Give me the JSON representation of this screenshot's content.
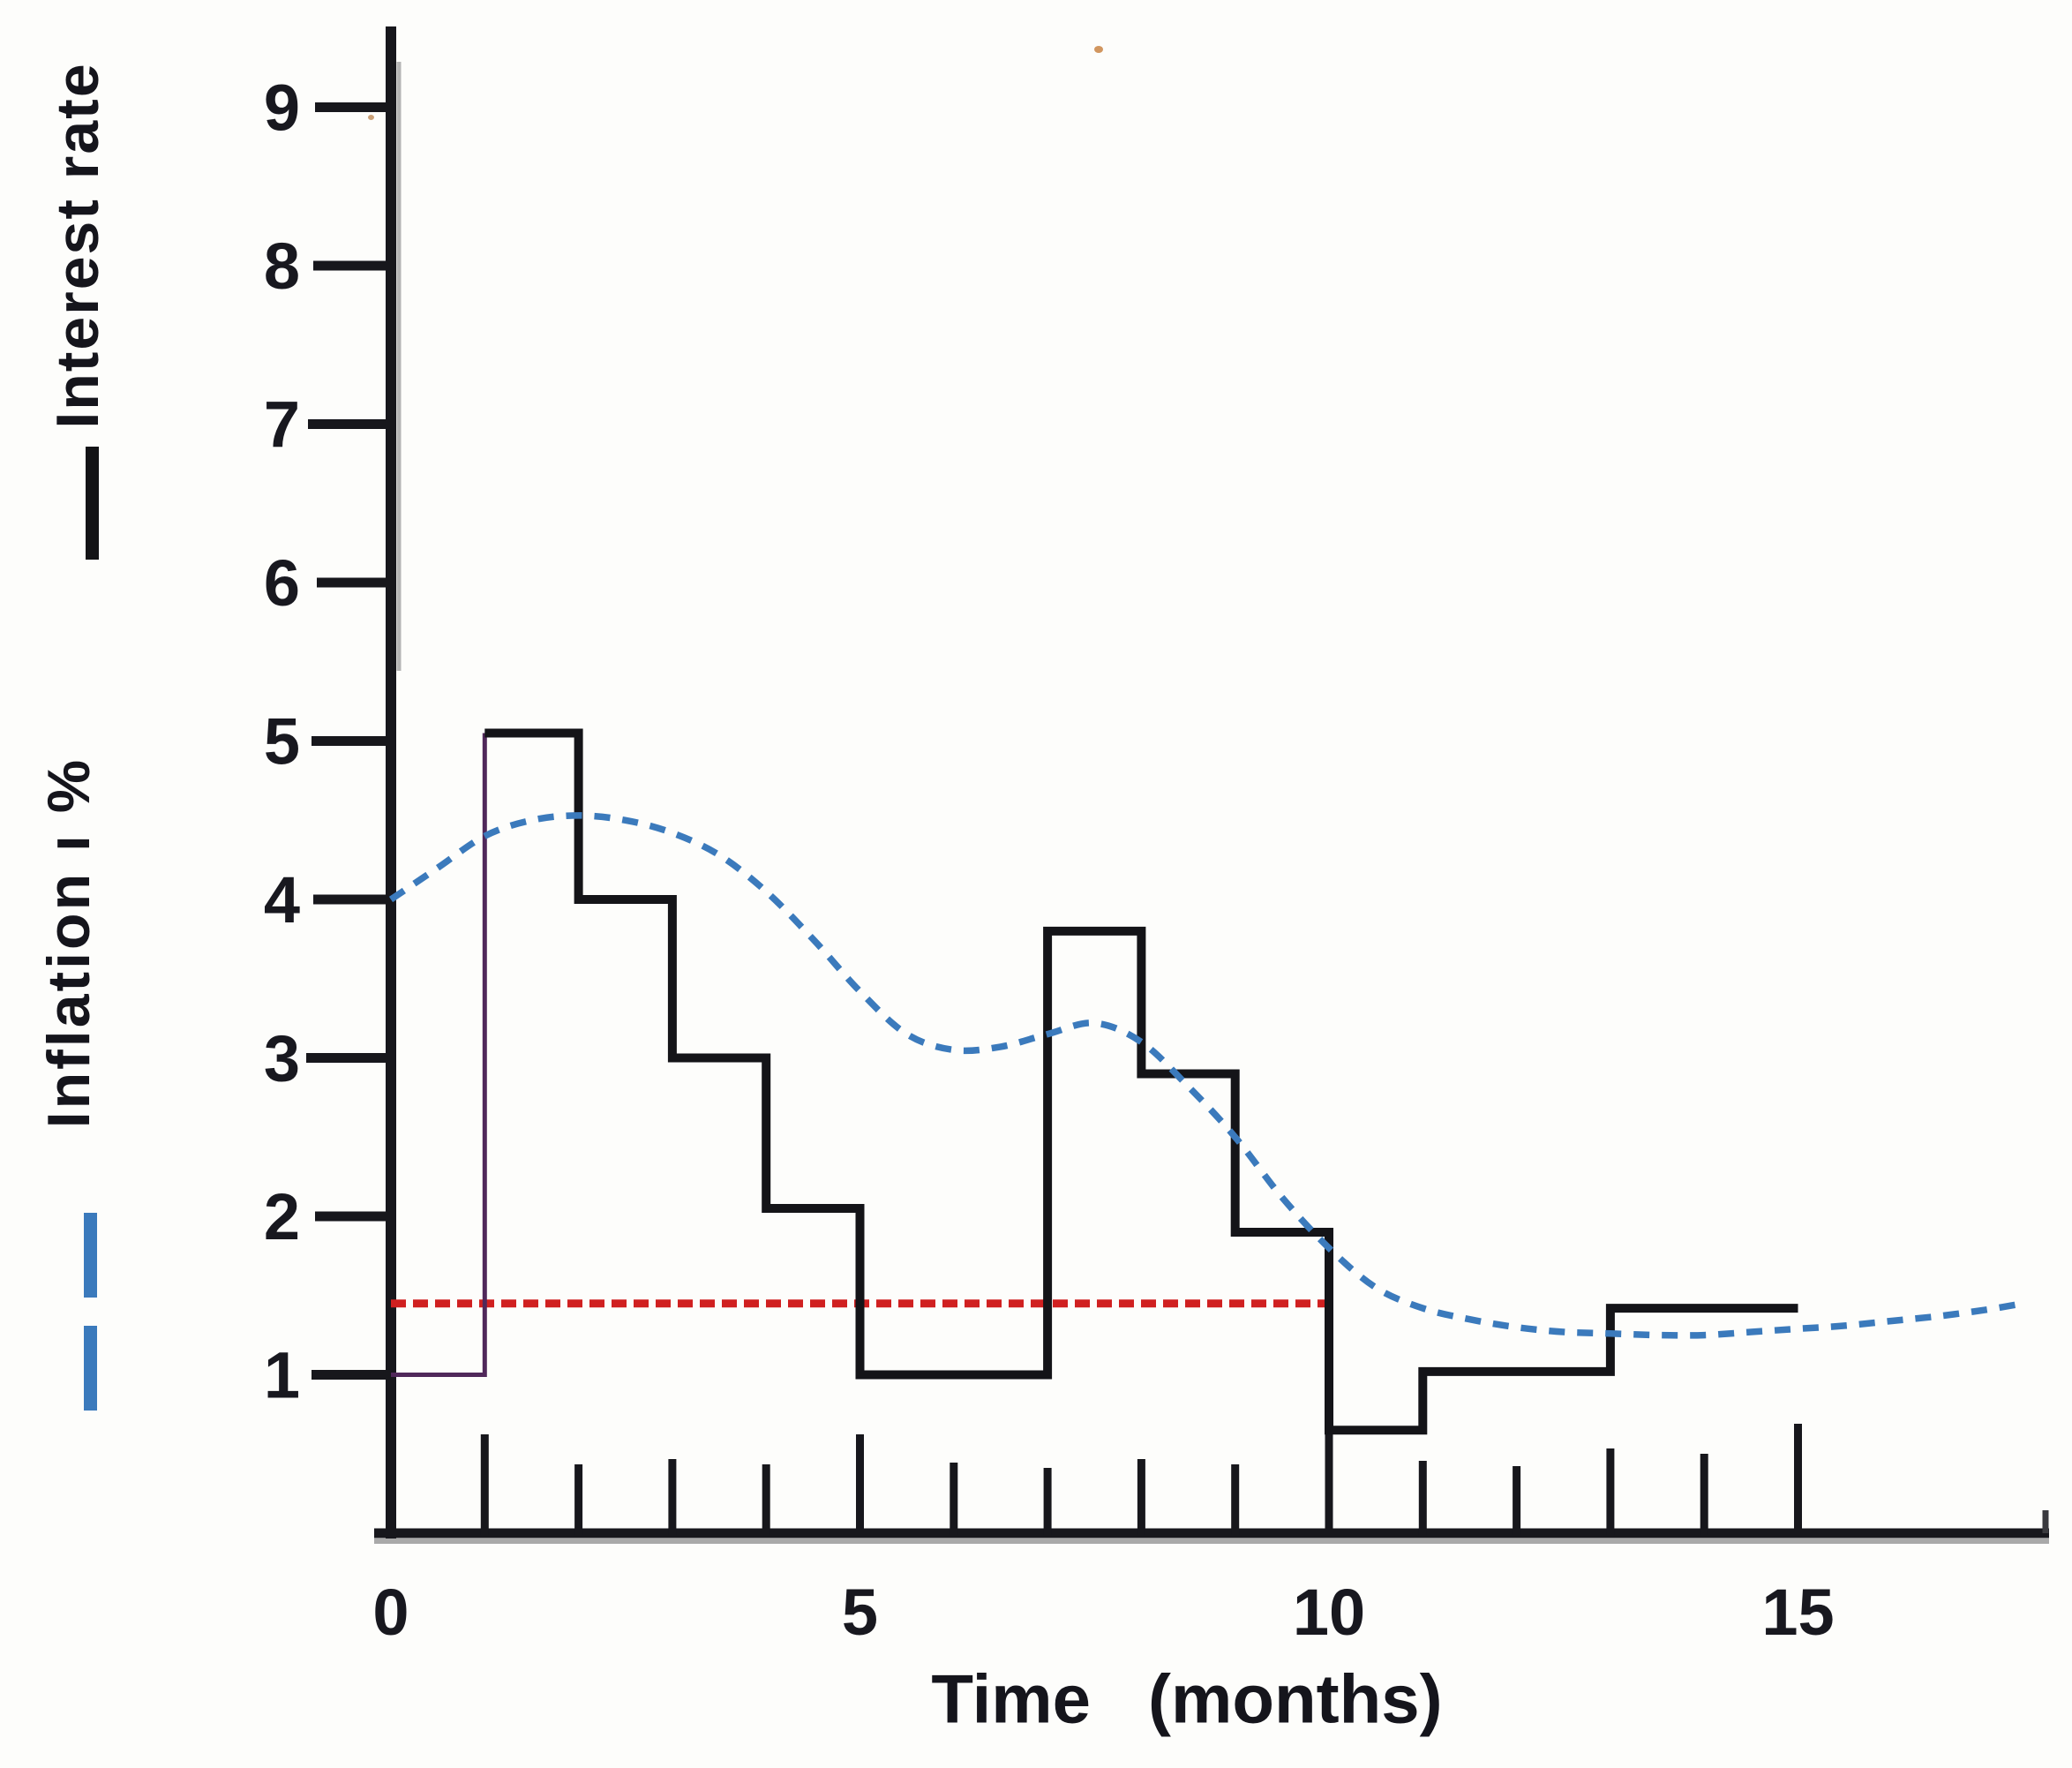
{
  "page": {
    "background": "#fdfdfb"
  },
  "legend": {
    "interest_rate": "Interest rate",
    "inflation": "Inflation ı %"
  },
  "x_axis": {
    "title": "Time   (months)"
  },
  "chart_data": {
    "type": "line",
    "title": "",
    "xlabel": "Time (months)",
    "ylabel": "Interest rate / Inflation %",
    "x_tick_labels": [
      0,
      5,
      10,
      15
    ],
    "x_minor_ticks": [
      1,
      2,
      3,
      4,
      5,
      6,
      7,
      8,
      9,
      10,
      11,
      12,
      13,
      14,
      15
    ],
    "y_ticks": [
      1,
      2,
      3,
      4,
      5,
      6,
      7,
      8,
      9
    ],
    "xlim": [
      0,
      17.7
    ],
    "ylim": [
      0,
      9.55
    ],
    "grid": false,
    "legend_position": "left-rotated",
    "axis_color": "#17171c",
    "series": [
      {
        "name": "Interest rate",
        "kind": "step",
        "color": "#141418",
        "width": 10,
        "dash": null,
        "points": [
          [
            1,
            5.05
          ],
          [
            2,
            5.05
          ],
          [
            2,
            4.0
          ],
          [
            3,
            4.0
          ],
          [
            3,
            3.0
          ],
          [
            4,
            3.0
          ],
          [
            4,
            2.05
          ],
          [
            5,
            2.05
          ],
          [
            5,
            1.0
          ],
          [
            7,
            1.0
          ],
          [
            7,
            3.8
          ],
          [
            8,
            3.8
          ],
          [
            8,
            2.9
          ],
          [
            9,
            2.9
          ],
          [
            9,
            1.9
          ],
          [
            10,
            1.9
          ],
          [
            10,
            0.65
          ],
          [
            11,
            0.65
          ],
          [
            11,
            1.02
          ],
          [
            13,
            1.02
          ],
          [
            13,
            1.42
          ],
          [
            15,
            1.42
          ]
        ]
      },
      {
        "name": "Interest rate (initial thin segment)",
        "kind": "line",
        "color": "#50285a",
        "width": 5,
        "dash": null,
        "points": [
          [
            0,
            1.0
          ],
          [
            1,
            1.0
          ],
          [
            1,
            5.05
          ]
        ]
      },
      {
        "name": "Inflation %",
        "kind": "smooth",
        "color": "#3b7abc",
        "width": 7.5,
        "dash": [
          18,
          14
        ],
        "points": [
          [
            0,
            4.0
          ],
          [
            0.5,
            4.2
          ],
          [
            1,
            4.4
          ],
          [
            1.5,
            4.5
          ],
          [
            2,
            4.53
          ],
          [
            2.5,
            4.5
          ],
          [
            3,
            4.42
          ],
          [
            3.5,
            4.28
          ],
          [
            4,
            4.05
          ],
          [
            4.5,
            3.75
          ],
          [
            5,
            3.42
          ],
          [
            5.5,
            3.15
          ],
          [
            6,
            3.05
          ],
          [
            6.5,
            3.07
          ],
          [
            7,
            3.15
          ],
          [
            7.5,
            3.22
          ],
          [
            8,
            3.1
          ],
          [
            8.5,
            2.82
          ],
          [
            9,
            2.5
          ],
          [
            9.5,
            2.12
          ],
          [
            10,
            1.8
          ],
          [
            10.5,
            1.55
          ],
          [
            11,
            1.42
          ],
          [
            11.5,
            1.35
          ],
          [
            12,
            1.3
          ],
          [
            12.5,
            1.27
          ],
          [
            13,
            1.26
          ],
          [
            13.5,
            1.25
          ],
          [
            14,
            1.25
          ],
          [
            14.5,
            1.27
          ],
          [
            15,
            1.29
          ],
          [
            15.5,
            1.31
          ],
          [
            16,
            1.34
          ],
          [
            16.5,
            1.37
          ],
          [
            17,
            1.41
          ],
          [
            17.4,
            1.45
          ]
        ]
      },
      {
        "name": "Red dashed reference line",
        "kind": "line",
        "color": "#d02020",
        "width": 9,
        "dash": [
          17,
          8
        ],
        "points": [
          [
            0,
            1.45
          ],
          [
            10,
            1.45
          ]
        ]
      }
    ]
  }
}
